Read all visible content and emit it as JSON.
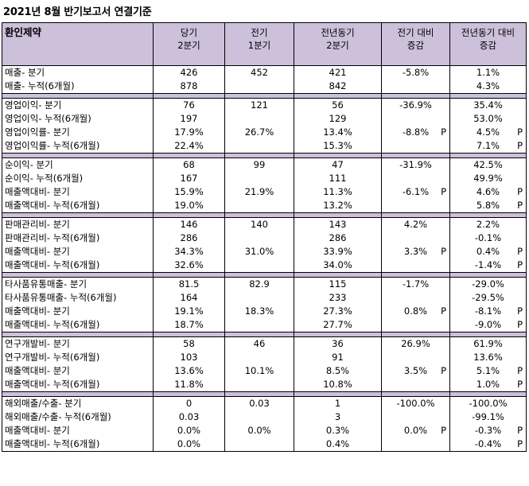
{
  "title": "2021년 8월 반기보고서 연결기준",
  "header": {
    "company": "환인제약",
    "cols": [
      {
        "l1": "당기",
        "l2": "2분기"
      },
      {
        "l1": "전기",
        "l2": "1분기"
      },
      {
        "l1": "전년동기",
        "l2": "2분기"
      },
      {
        "l1": "전기 대비",
        "l2": "증감"
      },
      {
        "l1": "전년동기 대비",
        "l2": "증감"
      }
    ]
  },
  "groups": [
    {
      "rows": [
        {
          "label": "매출- 분기",
          "cur": "426",
          "prev": "452",
          "yoy": "421",
          "qchg": "-5.8%",
          "qp": "",
          "ychg": "1.1%",
          "yp": ""
        },
        {
          "label": "매출- 누적(6개월)",
          "cur": "878",
          "prev": "",
          "yoy": "842",
          "qchg": "",
          "qp": "",
          "ychg": "4.3%",
          "yp": ""
        }
      ]
    },
    {
      "rows": [
        {
          "label": "영업이익- 분기",
          "cur": "76",
          "prev": "121",
          "yoy": "56",
          "qchg": "-36.9%",
          "qp": "",
          "ychg": "35.4%",
          "yp": ""
        },
        {
          "label": "영업이익- 누적(6개월)",
          "cur": "197",
          "prev": "",
          "yoy": "129",
          "qchg": "",
          "qp": "",
          "ychg": "53.0%",
          "yp": ""
        },
        {
          "label": "영업이익률- 분기",
          "cur": "17.9%",
          "prev": "26.7%",
          "yoy": "13.4%",
          "qchg": "-8.8%",
          "qp": "P",
          "ychg": "4.5%",
          "yp": "P"
        },
        {
          "label": "영업이익률- 누적(6개월)",
          "cur": "22.4%",
          "prev": "",
          "yoy": "15.3%",
          "qchg": "",
          "qp": "",
          "ychg": "7.1%",
          "yp": "P"
        }
      ]
    },
    {
      "rows": [
        {
          "label": "순이익- 분기",
          "cur": "68",
          "prev": "99",
          "yoy": "47",
          "qchg": "-31.9%",
          "qp": "",
          "ychg": "42.5%",
          "yp": ""
        },
        {
          "label": "순이익- 누적(6개월)",
          "cur": "167",
          "prev": "",
          "yoy": "111",
          "qchg": "",
          "qp": "",
          "ychg": "49.9%",
          "yp": ""
        },
        {
          "label": "매출액대비- 분기",
          "cur": "15.9%",
          "prev": "21.9%",
          "yoy": "11.3%",
          "qchg": "-6.1%",
          "qp": "P",
          "ychg": "4.6%",
          "yp": "P"
        },
        {
          "label": "매출액대비- 누적(6개월)",
          "cur": "19.0%",
          "prev": "",
          "yoy": "13.2%",
          "qchg": "",
          "qp": "",
          "ychg": "5.8%",
          "yp": "P"
        }
      ]
    },
    {
      "rows": [
        {
          "label": "판매관리비- 분기",
          "cur": "146",
          "prev": "140",
          "yoy": "143",
          "qchg": "4.2%",
          "qp": "",
          "ychg": "2.2%",
          "yp": ""
        },
        {
          "label": "판매관리비- 누적(6개월)",
          "cur": "286",
          "prev": "",
          "yoy": "286",
          "qchg": "",
          "qp": "",
          "ychg": "-0.1%",
          "yp": ""
        },
        {
          "label": "매출액대비- 분기",
          "cur": "34.3%",
          "prev": "31.0%",
          "yoy": "33.9%",
          "qchg": "3.3%",
          "qp": "P",
          "ychg": "0.4%",
          "yp": "P"
        },
        {
          "label": "매출액대비- 누적(6개월)",
          "cur": "32.6%",
          "prev": "",
          "yoy": "34.0%",
          "qchg": "",
          "qp": "",
          "ychg": "-1.4%",
          "yp": "P"
        }
      ]
    },
    {
      "rows": [
        {
          "label": "타사품유통매출- 분기",
          "cur": "81.5",
          "prev": "82.9",
          "yoy": "115",
          "qchg": "-1.7%",
          "qp": "",
          "ychg": "-29.0%",
          "yp": ""
        },
        {
          "label": "타사품유통매출- 누적(6개월)",
          "cur": "164",
          "prev": "",
          "yoy": "233",
          "qchg": "",
          "qp": "",
          "ychg": "-29.5%",
          "yp": ""
        },
        {
          "label": "매출액대비- 분기",
          "cur": "19.1%",
          "prev": "18.3%",
          "yoy": "27.3%",
          "qchg": "0.8%",
          "qp": "P",
          "ychg": "-8.1%",
          "yp": "P"
        },
        {
          "label": "매출액대비- 누적(6개월)",
          "cur": "18.7%",
          "prev": "",
          "yoy": "27.7%",
          "qchg": "",
          "qp": "",
          "ychg": "-9.0%",
          "yp": "P"
        }
      ]
    },
    {
      "rows": [
        {
          "label": "연구개발비- 분기",
          "cur": "58",
          "prev": "46",
          "yoy": "36",
          "qchg": "26.9%",
          "qp": "",
          "ychg": "61.9%",
          "yp": ""
        },
        {
          "label": "연구개발비- 누적(6개월)",
          "cur": "103",
          "prev": "",
          "yoy": "91",
          "qchg": "",
          "qp": "",
          "ychg": "13.6%",
          "yp": ""
        },
        {
          "label": "매출액대비- 분기",
          "cur": "13.6%",
          "prev": "10.1%",
          "yoy": "8.5%",
          "qchg": "3.5%",
          "qp": "P",
          "ychg": "5.1%",
          "yp": "P"
        },
        {
          "label": "매출액대비- 누적(6개월)",
          "cur": "11.8%",
          "prev": "",
          "yoy": "10.8%",
          "qchg": "",
          "qp": "",
          "ychg": "1.0%",
          "yp": "P"
        }
      ]
    },
    {
      "rows": [
        {
          "label": "해외매출/수출- 분기",
          "cur": "0",
          "prev": "0.03",
          "yoy": "1",
          "qchg": "-100.0%",
          "qp": "",
          "ychg": "-100.0%",
          "yp": ""
        },
        {
          "label": "해외매출/수출- 누적(6개월)",
          "cur": "0.03",
          "prev": "",
          "yoy": "3",
          "qchg": "",
          "qp": "",
          "ychg": "-99.1%",
          "yp": ""
        },
        {
          "label": "매출액대비- 분기",
          "cur": "0.0%",
          "prev": "0.0%",
          "yoy": "0.3%",
          "qchg": "0.0%",
          "qp": "P",
          "ychg": "-0.3%",
          "yp": "P"
        },
        {
          "label": "매출액대비- 누적(6개월)",
          "cur": "0.0%",
          "prev": "",
          "yoy": "0.4%",
          "qchg": "",
          "qp": "",
          "ychg": "-0.4%",
          "yp": "P"
        }
      ]
    }
  ]
}
